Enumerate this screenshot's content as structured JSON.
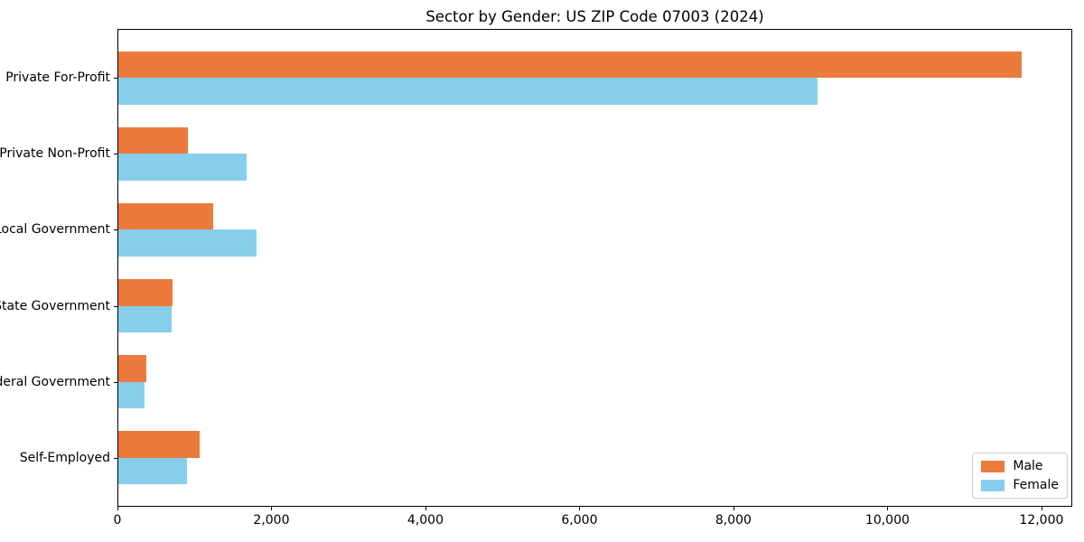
{
  "title": "Sector by Gender: US ZIP Code 07003 (2024)",
  "chart_data": {
    "type": "bar",
    "orientation": "horizontal",
    "title": "Sector by Gender: US ZIP Code 07003 (2024)",
    "categories": [
      "Private For-Profit",
      "Private Non-Profit",
      "Local Government",
      "State Government",
      "Federal Government",
      "Self-Employed"
    ],
    "series": [
      {
        "name": "Male",
        "color": "#EC7A3C",
        "values": [
          11750,
          900,
          1230,
          700,
          360,
          1060
        ]
      },
      {
        "name": "Female",
        "color": "#87CEEB",
        "values": [
          9100,
          1670,
          1800,
          690,
          340,
          890
        ]
      }
    ],
    "xlabel": "",
    "ylabel": "",
    "xlim": [
      0,
      12400
    ],
    "xticks": [
      0,
      2000,
      4000,
      6000,
      8000,
      10000,
      12000
    ],
    "xtick_labels": [
      "0",
      "2,000",
      "4,000",
      "6,000",
      "8,000",
      "10,000",
      "12,000"
    ],
    "grid": false,
    "legend_position": "lower right",
    "bar_group_offsets": {
      "pad": 0.635,
      "bar_height_frac": 0.35
    }
  },
  "legend": {
    "items": [
      {
        "label": "Male",
        "color": "#EC7A3C"
      },
      {
        "label": "Female",
        "color": "#87CEEB"
      }
    ]
  },
  "colors": {
    "male": "#EC7A3C",
    "female": "#87CEEB",
    "spine": "#000000",
    "background": "#ffffff"
  }
}
